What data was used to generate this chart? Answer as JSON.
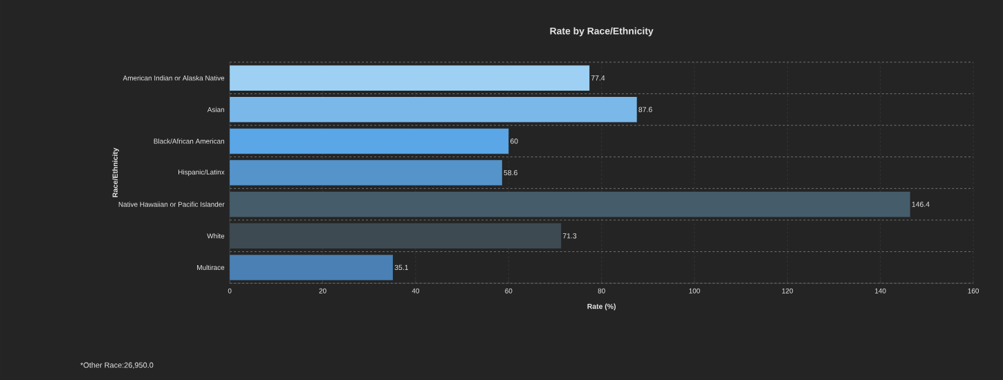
{
  "chart_data": {
    "type": "bar",
    "orientation": "horizontal",
    "title": "Rate by Race/Ethnicity",
    "xlabel": "Rate (%)",
    "ylabel": "Race/Ethnicity",
    "categories": [
      "American Indian or Alaska Native",
      "Asian",
      "Black/African American",
      "Hispanic/Latinx",
      "Native Hawaiian or Pacific Islander",
      "White",
      "Multirace"
    ],
    "values": [
      77.4,
      87.6,
      60,
      58.6,
      146.4,
      71.3,
      35.1
    ],
    "colors": [
      "#9dd0f2",
      "#7ab8ea",
      "#5aa6e6",
      "#5494cb",
      "#455c6b",
      "#3d4a52",
      "#4a80b4"
    ],
    "data_labels": true,
    "grid": true,
    "xlim": [
      0,
      160
    ],
    "xticks": [
      0,
      20,
      40,
      60,
      80,
      100,
      120,
      140,
      160
    ],
    "annotations": [
      "*Other Race:26,950.0"
    ]
  }
}
